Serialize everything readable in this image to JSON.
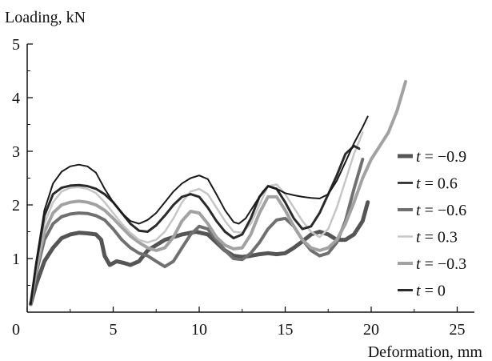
{
  "chart_data": {
    "type": "line",
    "xlabel": "Deformation, mm",
    "ylabel": "Loading, kN",
    "xlim": [
      0,
      26
    ],
    "ylim": [
      0,
      5
    ],
    "xticks": [
      0,
      5,
      10,
      15,
      20,
      25
    ],
    "yticks": [
      1,
      2,
      3,
      4,
      5
    ],
    "legend_position": "right",
    "series": [
      {
        "name": "t = −0.9",
        "label_var": "t",
        "label_rest": " = −0.9",
        "color": "#555555",
        "width": 5,
        "points": [
          [
            0.2,
            0.15
          ],
          [
            0.5,
            0.5
          ],
          [
            1,
            0.95
          ],
          [
            1.5,
            1.2
          ],
          [
            2,
            1.38
          ],
          [
            2.5,
            1.45
          ],
          [
            3,
            1.48
          ],
          [
            3.5,
            1.47
          ],
          [
            4,
            1.45
          ],
          [
            4.3,
            1.35
          ],
          [
            4.5,
            1.05
          ],
          [
            4.8,
            0.88
          ],
          [
            5.2,
            0.95
          ],
          [
            5.6,
            0.92
          ],
          [
            6,
            0.88
          ],
          [
            6.5,
            0.95
          ],
          [
            7,
            1.15
          ],
          [
            8,
            1.35
          ],
          [
            9,
            1.45
          ],
          [
            9.8,
            1.5
          ],
          [
            10.5,
            1.45
          ],
          [
            11,
            1.3
          ],
          [
            11.5,
            1.15
          ],
          [
            12,
            1.05
          ],
          [
            12.5,
            1.03
          ],
          [
            13,
            1.05
          ],
          [
            13.5,
            1.08
          ],
          [
            14,
            1.1
          ],
          [
            14.5,
            1.08
          ],
          [
            15,
            1.1
          ],
          [
            15.5,
            1.2
          ],
          [
            16,
            1.32
          ],
          [
            16.5,
            1.45
          ],
          [
            17,
            1.5
          ],
          [
            17.5,
            1.45
          ],
          [
            18,
            1.35
          ],
          [
            18.5,
            1.35
          ],
          [
            19,
            1.45
          ],
          [
            19.5,
            1.7
          ],
          [
            19.8,
            2.05
          ]
        ]
      },
      {
        "name": "t = 0.6",
        "label_var": "t",
        "label_rest": " = 0.6",
        "color": "#1a1a1a",
        "width": 2,
        "points": [
          [
            0.2,
            0.15
          ],
          [
            0.5,
            0.9
          ],
          [
            1,
            1.9
          ],
          [
            1.5,
            2.4
          ],
          [
            2,
            2.62
          ],
          [
            2.5,
            2.72
          ],
          [
            3,
            2.75
          ],
          [
            3.5,
            2.72
          ],
          [
            4,
            2.6
          ],
          [
            4.5,
            2.3
          ],
          [
            5,
            2.05
          ],
          [
            5.5,
            1.85
          ],
          [
            6,
            1.7
          ],
          [
            6.5,
            1.65
          ],
          [
            7,
            1.72
          ],
          [
            7.5,
            1.85
          ],
          [
            8,
            2.05
          ],
          [
            8.5,
            2.25
          ],
          [
            9,
            2.4
          ],
          [
            9.5,
            2.5
          ],
          [
            10,
            2.55
          ],
          [
            10.5,
            2.48
          ],
          [
            11,
            2.2
          ],
          [
            11.5,
            1.9
          ],
          [
            12,
            1.68
          ],
          [
            12.3,
            1.65
          ],
          [
            12.7,
            1.75
          ],
          [
            13.2,
            2.0
          ],
          [
            13.7,
            2.25
          ],
          [
            14,
            2.35
          ],
          [
            14.5,
            2.3
          ],
          [
            15,
            2.22
          ],
          [
            15.5,
            2.18
          ],
          [
            16,
            2.15
          ],
          [
            16.5,
            2.13
          ],
          [
            17,
            2.12
          ],
          [
            17.5,
            2.2
          ],
          [
            18,
            2.45
          ],
          [
            18.5,
            2.8
          ],
          [
            19,
            3.15
          ],
          [
            19.5,
            3.45
          ],
          [
            19.8,
            3.65
          ]
        ]
      },
      {
        "name": "t = −0.6",
        "label_var": "t",
        "label_rest": " = −0.6",
        "color": "#707070",
        "width": 4,
        "points": [
          [
            0.2,
            0.15
          ],
          [
            0.5,
            0.7
          ],
          [
            1,
            1.35
          ],
          [
            1.5,
            1.65
          ],
          [
            2,
            1.78
          ],
          [
            2.5,
            1.83
          ],
          [
            3,
            1.85
          ],
          [
            3.5,
            1.84
          ],
          [
            4,
            1.8
          ],
          [
            4.5,
            1.72
          ],
          [
            5,
            1.55
          ],
          [
            5.5,
            1.35
          ],
          [
            6,
            1.2
          ],
          [
            6.5,
            1.1
          ],
          [
            7,
            1.05
          ],
          [
            7.5,
            0.95
          ],
          [
            8,
            0.85
          ],
          [
            8.5,
            0.95
          ],
          [
            9,
            1.2
          ],
          [
            9.5,
            1.45
          ],
          [
            10,
            1.6
          ],
          [
            10.5,
            1.55
          ],
          [
            11,
            1.35
          ],
          [
            11.5,
            1.15
          ],
          [
            12,
            1.0
          ],
          [
            12.5,
            0.98
          ],
          [
            13,
            1.1
          ],
          [
            13.5,
            1.3
          ],
          [
            14,
            1.55
          ],
          [
            14.5,
            1.72
          ],
          [
            15,
            1.75
          ],
          [
            15.5,
            1.6
          ],
          [
            16,
            1.35
          ],
          [
            16.5,
            1.15
          ],
          [
            17,
            1.05
          ],
          [
            17.5,
            1.1
          ],
          [
            18,
            1.3
          ],
          [
            18.5,
            1.7
          ],
          [
            19,
            2.3
          ],
          [
            19.5,
            2.85
          ]
        ]
      },
      {
        "name": "t = 0.3",
        "label_var": "t",
        "label_rest": " = 0.3",
        "color": "#c6c6c6",
        "width": 2.5,
        "points": [
          [
            0.2,
            0.15
          ],
          [
            0.5,
            0.8
          ],
          [
            1,
            1.65
          ],
          [
            1.5,
            2.05
          ],
          [
            2,
            2.25
          ],
          [
            2.5,
            2.32
          ],
          [
            3,
            2.33
          ],
          [
            3.5,
            2.3
          ],
          [
            4,
            2.22
          ],
          [
            4.5,
            2.05
          ],
          [
            5,
            1.85
          ],
          [
            5.5,
            1.65
          ],
          [
            6,
            1.48
          ],
          [
            6.5,
            1.35
          ],
          [
            7,
            1.3
          ],
          [
            7.5,
            1.35
          ],
          [
            8,
            1.5
          ],
          [
            8.5,
            1.75
          ],
          [
            9,
            2.05
          ],
          [
            9.5,
            2.25
          ],
          [
            10,
            2.3
          ],
          [
            10.5,
            2.2
          ],
          [
            11,
            1.95
          ],
          [
            11.5,
            1.7
          ],
          [
            12,
            1.5
          ],
          [
            12.5,
            1.48
          ],
          [
            13,
            1.65
          ],
          [
            13.5,
            2.0
          ],
          [
            14,
            2.35
          ],
          [
            14.5,
            2.38
          ],
          [
            15,
            2.2
          ],
          [
            15.5,
            1.95
          ],
          [
            16,
            1.7
          ],
          [
            16.5,
            1.5
          ],
          [
            17,
            1.4
          ],
          [
            17.5,
            1.55
          ],
          [
            18,
            1.95
          ],
          [
            18.5,
            2.45
          ],
          [
            19,
            2.95
          ],
          [
            19.5,
            3.35
          ]
        ]
      },
      {
        "name": "t = −0.3",
        "label_var": "t",
        "label_rest": " = −0.3",
        "color": "#a2a2a2",
        "width": 4,
        "points": [
          [
            0.2,
            0.15
          ],
          [
            0.5,
            0.75
          ],
          [
            1,
            1.5
          ],
          [
            1.5,
            1.85
          ],
          [
            2,
            2.0
          ],
          [
            2.5,
            2.05
          ],
          [
            3,
            2.07
          ],
          [
            3.5,
            2.05
          ],
          [
            4,
            2.0
          ],
          [
            4.5,
            1.9
          ],
          [
            5,
            1.75
          ],
          [
            5.5,
            1.58
          ],
          [
            6,
            1.42
          ],
          [
            6.5,
            1.3
          ],
          [
            7,
            1.2
          ],
          [
            7.5,
            1.15
          ],
          [
            8,
            1.2
          ],
          [
            8.5,
            1.4
          ],
          [
            9,
            1.7
          ],
          [
            9.5,
            1.88
          ],
          [
            10,
            1.85
          ],
          [
            10.5,
            1.65
          ],
          [
            11,
            1.4
          ],
          [
            11.5,
            1.25
          ],
          [
            12,
            1.18
          ],
          [
            12.5,
            1.2
          ],
          [
            13,
            1.45
          ],
          [
            13.5,
            1.85
          ],
          [
            14,
            2.15
          ],
          [
            14.5,
            2.15
          ],
          [
            15,
            1.9
          ],
          [
            15.5,
            1.6
          ],
          [
            16,
            1.35
          ],
          [
            16.5,
            1.2
          ],
          [
            17,
            1.15
          ],
          [
            17.5,
            1.2
          ],
          [
            18,
            1.35
          ],
          [
            18.5,
            1.65
          ],
          [
            19,
            2.05
          ],
          [
            19.5,
            2.5
          ],
          [
            20,
            2.85
          ],
          [
            20.5,
            3.1
          ],
          [
            21,
            3.35
          ],
          [
            21.5,
            3.75
          ],
          [
            22,
            4.3
          ]
        ]
      },
      {
        "name": "t = 0",
        "label_var": "t",
        "label_rest": " = 0",
        "color": "#2a2a2a",
        "width": 3,
        "points": [
          [
            0.2,
            0.15
          ],
          [
            0.5,
            0.85
          ],
          [
            1,
            1.8
          ],
          [
            1.5,
            2.2
          ],
          [
            2,
            2.32
          ],
          [
            2.5,
            2.36
          ],
          [
            3,
            2.37
          ],
          [
            3.5,
            2.35
          ],
          [
            4,
            2.3
          ],
          [
            4.5,
            2.2
          ],
          [
            5,
            2.05
          ],
          [
            5.5,
            1.85
          ],
          [
            6,
            1.65
          ],
          [
            6.5,
            1.52
          ],
          [
            7,
            1.5
          ],
          [
            7.5,
            1.62
          ],
          [
            8,
            1.8
          ],
          [
            8.5,
            2.0
          ],
          [
            9,
            2.15
          ],
          [
            9.5,
            2.2
          ],
          [
            10,
            2.15
          ],
          [
            10.5,
            1.95
          ],
          [
            11,
            1.7
          ],
          [
            11.5,
            1.5
          ],
          [
            12,
            1.38
          ],
          [
            12.5,
            1.45
          ],
          [
            13,
            1.75
          ],
          [
            13.5,
            2.15
          ],
          [
            14,
            2.35
          ],
          [
            14.5,
            2.3
          ],
          [
            15,
            2.05
          ],
          [
            15.5,
            1.75
          ],
          [
            16,
            1.55
          ],
          [
            16.5,
            1.6
          ],
          [
            17,
            1.85
          ],
          [
            17.5,
            2.2
          ],
          [
            18,
            2.55
          ],
          [
            18.5,
            2.95
          ],
          [
            19,
            3.1
          ],
          [
            19.3,
            3.05
          ]
        ]
      }
    ]
  }
}
